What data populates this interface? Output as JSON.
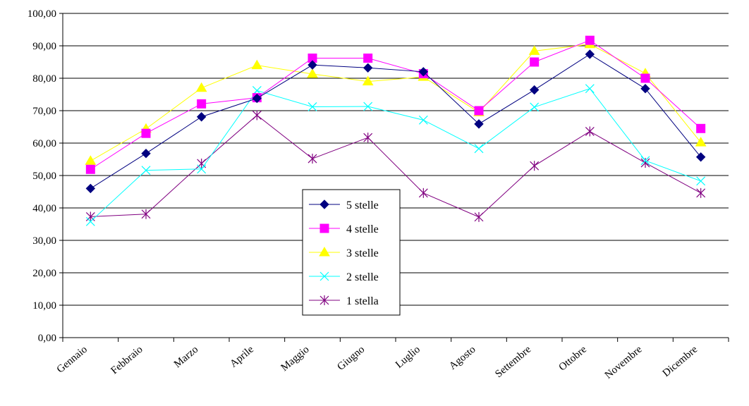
{
  "chart_data": {
    "type": "line",
    "categories": [
      "Gennaio",
      "Febbraio",
      "Marzo",
      "Aprile",
      "Maggio",
      "Giugno",
      "Luglio",
      "Agosto",
      "Settembre",
      "Ottobre",
      "Novembre",
      "Dicembre"
    ],
    "ylim": [
      0,
      100
    ],
    "yticks": [
      "0,00",
      "10,00",
      "20,00",
      "30,00",
      "40,00",
      "50,00",
      "60,00",
      "70,00",
      "80,00",
      "90,00",
      "100,00"
    ],
    "grid": true,
    "legend_position": "center",
    "series": [
      {
        "name": "5 stelle",
        "color": "#000080",
        "marker": "diamond",
        "values": [
          46.0,
          56.8,
          68.1,
          73.8,
          84.1,
          83.2,
          82.0,
          65.9,
          76.4,
          87.4,
          76.8,
          55.7
        ]
      },
      {
        "name": "4 stelle",
        "color": "#ff00ff",
        "marker": "square",
        "values": [
          51.9,
          63.0,
          72.1,
          74.0,
          86.2,
          86.2,
          81.4,
          70.0,
          85.0,
          91.7,
          80.0,
          64.5
        ]
      },
      {
        "name": "3 stelle",
        "color": "#ffff00",
        "marker": "triangle",
        "values": [
          54.5,
          64.4,
          77.0,
          84.0,
          81.3,
          79.0,
          80.4,
          69.5,
          88.4,
          90.5,
          81.5,
          60.2
        ]
      },
      {
        "name": "2 stelle",
        "color": "#00ffff",
        "marker": "x",
        "values": [
          35.8,
          51.6,
          52.0,
          76.2,
          71.2,
          71.3,
          67.1,
          58.3,
          71.1,
          76.8,
          54.6,
          48.3
        ]
      },
      {
        "name": "1 stella",
        "color": "#800080",
        "marker": "star",
        "values": [
          37.3,
          38.1,
          53.7,
          68.6,
          55.2,
          61.7,
          44.6,
          37.2,
          53.0,
          63.6,
          53.9,
          44.6
        ]
      }
    ]
  }
}
